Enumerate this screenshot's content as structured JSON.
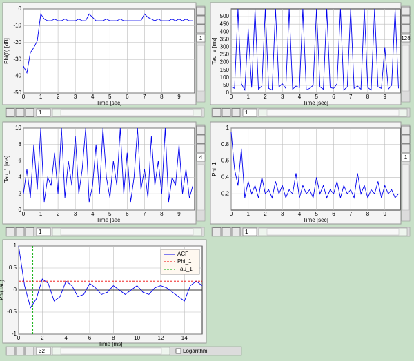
{
  "chart_data": [
    {
      "type": "line",
      "xlabel": "Time [sec]",
      "ylabel": "Phi(0) [dB]",
      "color": "#0000ee",
      "grid": true,
      "xlim": [
        0,
        9.9
      ],
      "xticks": [
        0,
        1,
        2,
        3,
        4,
        5,
        6,
        7,
        8,
        9
      ],
      "ylim": [
        -50,
        0
      ],
      "yticks": [
        0,
        -10,
        -20,
        -30,
        -40,
        -50
      ],
      "x": [
        0,
        0.2,
        0.4,
        0.6,
        0.8,
        1,
        1.2,
        1.4,
        1.6,
        1.8,
        2,
        2.2,
        2.4,
        2.6,
        2.8,
        3,
        3.2,
        3.4,
        3.6,
        3.8,
        4,
        4.2,
        4.4,
        4.6,
        4.8,
        5,
        5.2,
        5.4,
        5.6,
        5.8,
        6,
        6.2,
        6.4,
        6.6,
        6.8,
        7,
        7.2,
        7.4,
        7.6,
        7.8,
        8,
        8.2,
        8.4,
        8.6,
        8.8,
        9,
        9.2,
        9.4,
        9.6,
        9.8
      ],
      "values": [
        -34,
        -38,
        -26,
        -23,
        -19,
        -3,
        -6,
        -7,
        -7,
        -6,
        -7,
        -7,
        -6,
        -7,
        -7,
        -7,
        -6,
        -7,
        -7,
        -3,
        -5,
        -7,
        -7,
        -7,
        -6,
        -7,
        -7,
        -7,
        -6,
        -7,
        -7,
        -7,
        -7,
        -7,
        -7,
        -3,
        -5,
        -6,
        -7,
        -6,
        -7,
        -7,
        -7,
        -6,
        -7,
        -6,
        -7,
        -6,
        -7,
        -7
      ]
    },
    {
      "type": "line",
      "xlabel": "Time [sec]",
      "ylabel": "Tau_e [ms]",
      "color": "#0000ee",
      "grid": true,
      "xlim": [
        0,
        9.9
      ],
      "xticks": [
        0,
        1,
        2,
        3,
        4,
        5,
        6,
        7,
        8,
        9
      ],
      "ylim": [
        0,
        550
      ],
      "yticks": [
        0,
        50,
        100,
        150,
        200,
        250,
        300,
        350,
        400,
        450,
        500
      ],
      "x": [
        0,
        0.2,
        0.4,
        0.6,
        0.8,
        1,
        1.2,
        1.4,
        1.6,
        1.8,
        2,
        2.2,
        2.4,
        2.6,
        2.8,
        3,
        3.2,
        3.4,
        3.6,
        3.8,
        4,
        4.2,
        4.4,
        4.6,
        4.8,
        5,
        5.2,
        5.4,
        5.6,
        5.8,
        6,
        6.2,
        6.4,
        6.6,
        6.8,
        7,
        7.2,
        7.4,
        7.6,
        7.8,
        8,
        8.2,
        8.4,
        8.6,
        8.8,
        9,
        9.2,
        9.4,
        9.6,
        9.8
      ],
      "values": [
        40,
        30,
        550,
        60,
        20,
        420,
        35,
        550,
        25,
        45,
        550,
        30,
        20,
        550,
        40,
        60,
        30,
        550,
        25,
        45,
        35,
        550,
        20,
        30,
        50,
        550,
        40,
        25,
        550,
        35,
        30,
        60,
        550,
        20,
        40,
        550,
        30,
        45,
        25,
        550,
        35,
        20,
        550,
        40,
        30,
        300,
        25,
        50,
        550,
        30
      ]
    },
    {
      "type": "line",
      "xlabel": "Time [sec]",
      "ylabel": "Tau_1 [ms]",
      "color": "#0000ee",
      "grid": true,
      "xlim": [
        0,
        9.9
      ],
      "xticks": [
        0,
        1,
        2,
        3,
        4,
        5,
        6,
        7,
        8,
        9
      ],
      "ylim": [
        0,
        10
      ],
      "yticks": [
        0,
        2,
        4,
        6,
        8,
        10
      ],
      "x": [
        0,
        0.2,
        0.4,
        0.6,
        0.8,
        1,
        1.2,
        1.4,
        1.6,
        1.8,
        2,
        2.2,
        2.4,
        2.6,
        2.8,
        3,
        3.2,
        3.4,
        3.6,
        3.8,
        4,
        4.2,
        4.4,
        4.6,
        4.8,
        5,
        5.2,
        5.4,
        5.6,
        5.8,
        6,
        6.2,
        6.4,
        6.6,
        6.8,
        7,
        7.2,
        7.4,
        7.6,
        7.8,
        8,
        8.2,
        8.4,
        8.6,
        8.8,
        9,
        9.2,
        9.4,
        9.6,
        9.8
      ],
      "values": [
        2,
        5,
        1.5,
        8,
        2.5,
        10,
        1,
        4,
        3,
        7,
        2,
        10,
        1.5,
        6,
        3,
        9,
        2,
        5,
        10,
        1,
        3,
        8,
        2,
        10,
        4,
        1.5,
        6,
        3,
        10,
        2,
        7,
        1,
        4,
        10,
        2.5,
        5,
        1.5,
        9,
        3,
        6,
        2,
        10,
        1,
        4,
        3,
        8,
        2,
        5,
        1.5,
        3
      ]
    },
    {
      "type": "line",
      "xlabel": "Time [sec]",
      "ylabel": "Phi_1",
      "color": "#0000ee",
      "grid": true,
      "xlim": [
        0,
        9.9
      ],
      "xticks": [
        0,
        1,
        2,
        3,
        4,
        5,
        6,
        7,
        8,
        9
      ],
      "ylim": [
        0,
        1
      ],
      "yticks": [
        0.2,
        0.4,
        0.6,
        0.8,
        1
      ],
      "x": [
        0,
        0.2,
        0.4,
        0.6,
        0.8,
        1,
        1.2,
        1.4,
        1.6,
        1.8,
        2,
        2.2,
        2.4,
        2.6,
        2.8,
        3,
        3.2,
        3.4,
        3.6,
        3.8,
        4,
        4.2,
        4.4,
        4.6,
        4.8,
        5,
        5.2,
        5.4,
        5.6,
        5.8,
        6,
        6.2,
        6.4,
        6.6,
        6.8,
        7,
        7.2,
        7.4,
        7.6,
        7.8,
        8,
        8.2,
        8.4,
        8.6,
        8.8,
        9,
        9.2,
        9.4,
        9.6,
        9.8
      ],
      "values": [
        0.95,
        0.5,
        0.3,
        0.75,
        0.15,
        0.35,
        0.2,
        0.3,
        0.15,
        0.4,
        0.2,
        0.25,
        0.15,
        0.35,
        0.2,
        0.3,
        0.15,
        0.25,
        0.2,
        0.45,
        0.15,
        0.3,
        0.2,
        0.25,
        0.15,
        0.4,
        0.2,
        0.3,
        0.15,
        0.25,
        0.2,
        0.35,
        0.15,
        0.3,
        0.2,
        0.25,
        0.15,
        0.45,
        0.2,
        0.3,
        0.15,
        0.25,
        0.2,
        0.35,
        0.15,
        0.3,
        0.2,
        0.25,
        0.15,
        0.2
      ]
    },
    {
      "type": "acf",
      "xlabel": "Time [ms]",
      "ylabel": "Phi(Tau)",
      "grid": true,
      "xlim": [
        0,
        15.5
      ],
      "xticks": [
        0,
        2,
        4,
        6,
        8,
        10,
        12,
        14
      ],
      "ylim": [
        -1,
        1
      ],
      "yticks": [
        -1,
        -0.5,
        0,
        0.5,
        1
      ],
      "series": [
        {
          "name": "ACF",
          "color": "#0000ee",
          "x": [
            0,
            0.5,
            1,
            1.5,
            2,
            2.5,
            3,
            3.5,
            4,
            4.5,
            5,
            5.5,
            6,
            6.5,
            7,
            7.5,
            8,
            8.5,
            9,
            9.5,
            10,
            10.5,
            11,
            11.5,
            12,
            12.5,
            13,
            13.5,
            14,
            14.5,
            15,
            15.5
          ],
          "values": [
            1,
            0.1,
            -0.4,
            -0.2,
            0.25,
            0.15,
            -0.25,
            -0.15,
            0.2,
            0.1,
            -0.15,
            -0.1,
            0.15,
            0.05,
            -0.1,
            -0.05,
            0.1,
            0,
            -0.1,
            0,
            0.1,
            -0.05,
            -0.1,
            0.05,
            0.1,
            0.05,
            -0.05,
            -0.15,
            -0.25,
            0.1,
            0.2,
            0.1
          ]
        },
        {
          "name": "Phi_1",
          "color": "#ee0000",
          "y": 0.2
        },
        {
          "name": "Tau_1",
          "color": "#00aa00",
          "x": 1.2
        }
      ]
    }
  ],
  "controls": {
    "zoom": [
      1,
      128,
      4,
      1
    ],
    "page": [
      1,
      1,
      1,
      1,
      32
    ],
    "log_label": "Logarithm"
  }
}
